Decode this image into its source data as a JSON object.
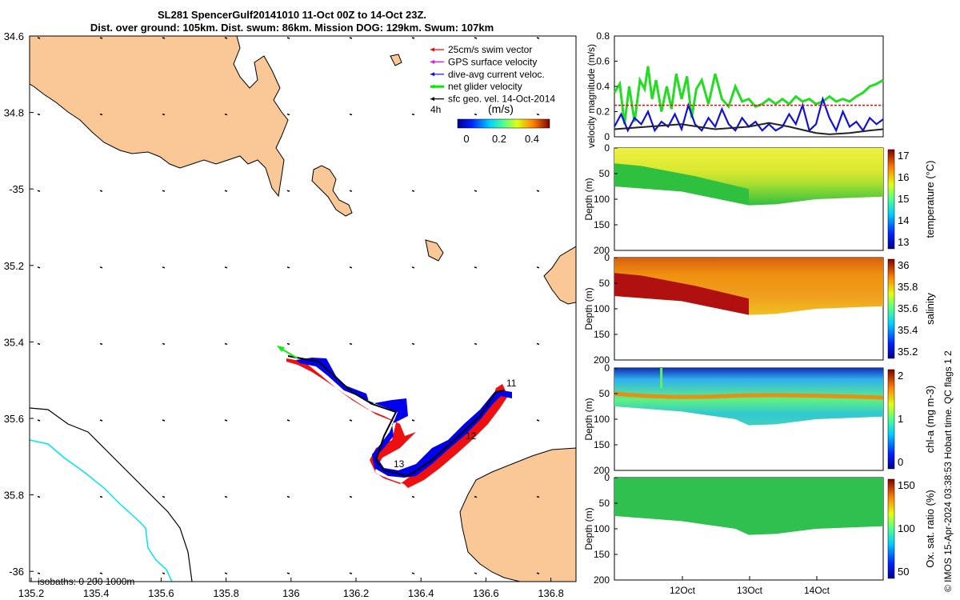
{
  "title_line1": "SL281 SpencerGulf20141010 11-Oct 00Z to 14-Oct 23Z.",
  "title_line2": "Dist. over ground: 105km. Dist. swum: 86km. Mission DOG: 129km. Swum: 107km",
  "credit": "© IMOS 15-Apr-2024 03:38:53 Hobart time. QC flags 1  2",
  "map": {
    "lon_ticks": [
      "135.2",
      "135.4",
      "135.6",
      "135.8",
      "136",
      "136.2",
      "136.4",
      "136.6",
      "136.8"
    ],
    "lat_ticks": [
      "34.6",
      "34.8",
      "-35",
      "35.2",
      "35.4",
      "35.6",
      "35.8",
      "-36"
    ],
    "legend": [
      {
        "label": "25cm/s swim vector",
        "color": "#ff0000"
      },
      {
        "label": "GPS surface velocity",
        "color": "#ff00ff"
      },
      {
        "label": "dive-avg current veloc.",
        "color": "#0000ff"
      },
      {
        "label": "net glider velocity",
        "color": "#00ee00"
      },
      {
        "label": "sfc geo. vel. 14-Oct-2014",
        "color": "#000000"
      }
    ],
    "legend_note": "4h",
    "colorbar_unit": "(m/s)",
    "colorbar_ticks": [
      "0",
      "0.2",
      "0.4"
    ],
    "track_labels": [
      "11",
      "12",
      "13"
    ],
    "isobaths_label": "isobaths: 0   200  1000m",
    "land_color": "#f9c896",
    "shallow_isobath_color": "#00e5ee"
  },
  "chart_data": [
    {
      "type": "line",
      "title": "",
      "ylabel": "velocity magnitude (m/s)",
      "ylim": [
        0,
        0.8
      ],
      "yticks": [
        "0",
        "0.2",
        "0.4",
        "0.6",
        "0.8"
      ],
      "x_range": [
        0,
        4
      ],
      "series": [
        {
          "name": "net glider velocity",
          "color": "#22dd22",
          "x": [
            0,
            0.08,
            0.15,
            0.22,
            0.3,
            0.38,
            0.45,
            0.5,
            0.56,
            0.62,
            0.7,
            0.78,
            0.85,
            0.92,
            1.0,
            1.08,
            1.15,
            1.22,
            1.3,
            1.4,
            1.5,
            1.6,
            1.7,
            1.8,
            1.9,
            2.0,
            2.1,
            2.2,
            2.3,
            2.4,
            2.5,
            2.6,
            2.7,
            2.8,
            2.9,
            3.0,
            3.1,
            3.2,
            3.3,
            3.4,
            3.5,
            3.6,
            3.7,
            3.8,
            3.9,
            4.0
          ],
          "values": [
            0.35,
            0.42,
            0.1,
            0.4,
            0.12,
            0.45,
            0.38,
            0.56,
            0.3,
            0.45,
            0.2,
            0.4,
            0.22,
            0.5,
            0.3,
            0.48,
            0.15,
            0.38,
            0.45,
            0.26,
            0.5,
            0.3,
            0.24,
            0.4,
            0.28,
            0.3,
            0.24,
            0.26,
            0.3,
            0.26,
            0.3,
            0.26,
            0.32,
            0.28,
            0.3,
            0.26,
            0.28,
            0.32,
            0.28,
            0.3,
            0.28,
            0.32,
            0.35,
            0.4,
            0.42,
            0.45
          ]
        },
        {
          "name": "dive-avg current veloc.",
          "color": "#1111dd",
          "x": [
            0,
            0.1,
            0.2,
            0.3,
            0.4,
            0.5,
            0.6,
            0.7,
            0.8,
            0.9,
            1.0,
            1.1,
            1.2,
            1.3,
            1.4,
            1.5,
            1.6,
            1.7,
            1.8,
            1.9,
            2.0,
            2.1,
            2.2,
            2.3,
            2.4,
            2.5,
            2.6,
            2.7,
            2.8,
            2.9,
            3.0,
            3.1,
            3.2,
            3.3,
            3.4,
            3.5,
            3.6,
            3.7,
            3.8,
            3.9,
            4.0
          ],
          "values": [
            0.08,
            0.18,
            0.05,
            0.15,
            0.1,
            0.2,
            0.05,
            0.12,
            0.08,
            0.18,
            0.06,
            0.25,
            0.1,
            0.05,
            0.15,
            0.08,
            0.22,
            0.1,
            0.05,
            0.15,
            0.08,
            0.12,
            0.05,
            0.1,
            0.05,
            0.08,
            0.18,
            0.1,
            0.25,
            0.05,
            0.1,
            0.3,
            0.15,
            0.05,
            0.2,
            0.08,
            0.12,
            0.05,
            0.15,
            0.1,
            0.14
          ]
        },
        {
          "name": "sfc geo. vel.",
          "color": "#222222",
          "x": [
            0,
            0.5,
            1.0,
            1.5,
            2.0,
            2.3,
            2.6,
            3.0,
            3.2,
            3.5,
            3.8,
            4.0
          ],
          "values": [
            0.06,
            0.08,
            0.1,
            0.06,
            0.08,
            0.11,
            0.08,
            0.03,
            0.02,
            0.03,
            0.05,
            0.06
          ]
        },
        {
          "name": "25cm/s swim vector",
          "color": "#ff0000",
          "x": [
            0,
            4
          ],
          "values": [
            0.25,
            0.25
          ]
        }
      ]
    },
    {
      "type": "heatmap",
      "ylabel": "Depth (m)",
      "cblabel": "temperature (°C)",
      "ylim": [
        0,
        200
      ],
      "yticks": [
        "0",
        "50",
        "100",
        "150",
        "200"
      ],
      "cb_ticks": [
        "13",
        "14",
        "15",
        "16",
        "17"
      ],
      "x_ticks": [
        "12Oct",
        "13Oct",
        "14Oct"
      ]
    },
    {
      "type": "heatmap",
      "ylabel": "Depth (m)",
      "cblabel": "salinity",
      "ylim": [
        0,
        200
      ],
      "yticks": [
        "0",
        "50",
        "100",
        "150",
        "200"
      ],
      "cb_ticks": [
        "35.2",
        "35.4",
        "35.6",
        "35.8",
        "36"
      ],
      "x_ticks": [
        "12Oct",
        "13Oct",
        "14Oct"
      ]
    },
    {
      "type": "heatmap",
      "ylabel": "Depth (m)",
      "cblabel": "chl-a (mg m-3)",
      "ylim": [
        0,
        200
      ],
      "yticks": [
        "0",
        "50",
        "100",
        "150",
        "200"
      ],
      "cb_ticks": [
        "0",
        "1",
        "2"
      ],
      "x_ticks": [
        "12Oct",
        "13Oct",
        "14Oct"
      ]
    },
    {
      "type": "heatmap",
      "ylabel": "Depth (m)",
      "cblabel": "Ox. sat. ratio (%)",
      "ylim": [
        0,
        200
      ],
      "yticks": [
        "0",
        "50",
        "100",
        "150",
        "200"
      ],
      "cb_ticks": [
        "50",
        "100",
        "150"
      ],
      "x_ticks": [
        "12Oct",
        "13Oct",
        "14Oct"
      ]
    }
  ]
}
